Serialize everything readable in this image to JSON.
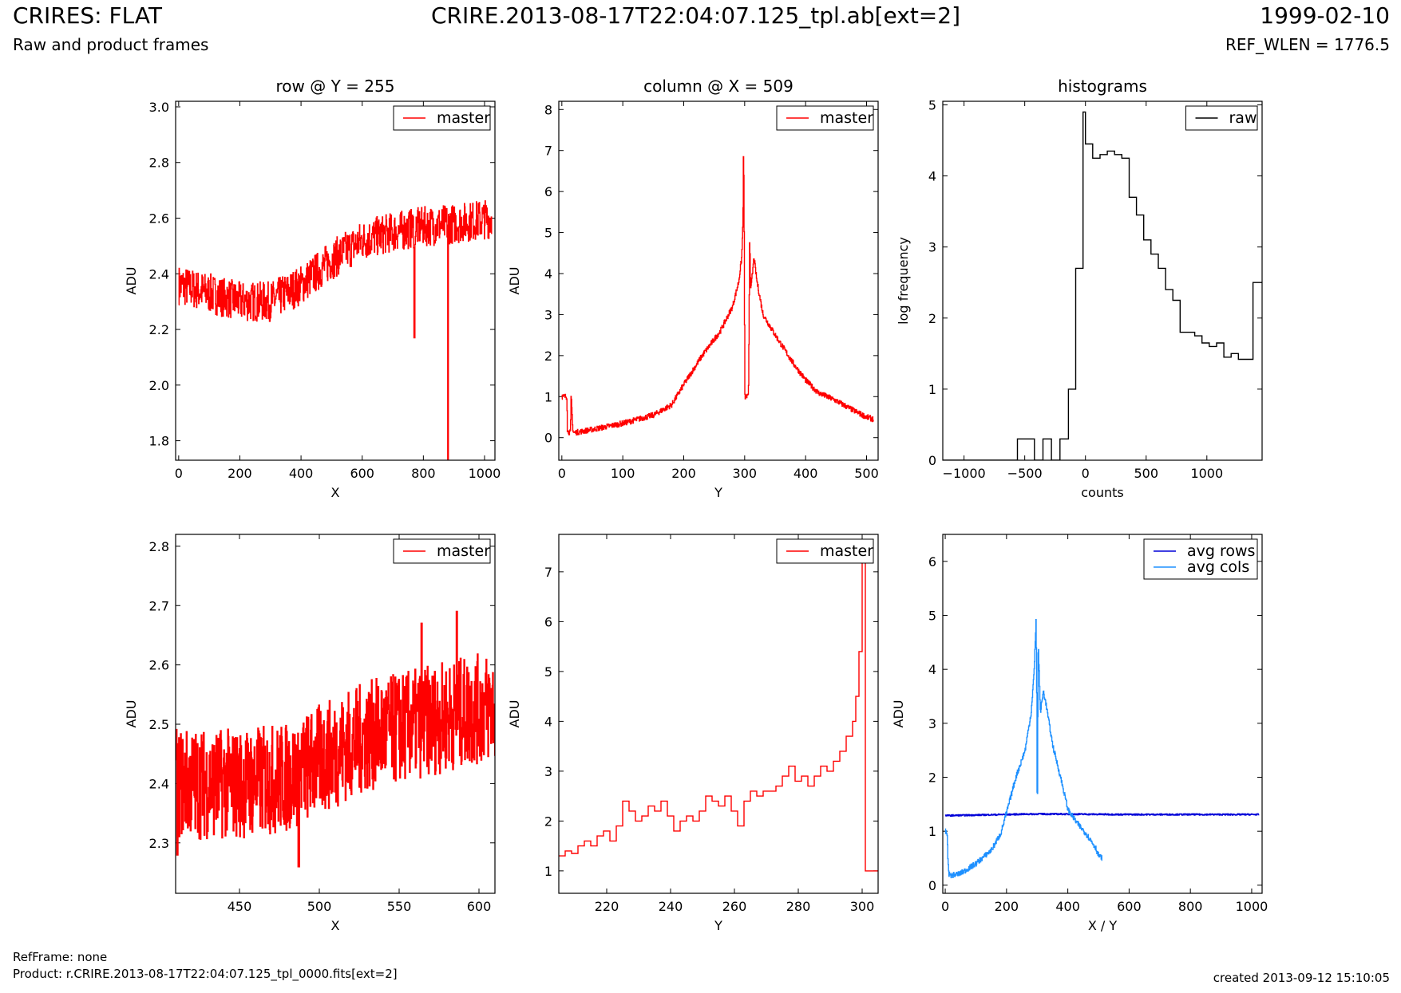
{
  "header": {
    "title": "CRIRES: FLAT",
    "subtitle": "Raw and product frames",
    "file": "CRIRE.2013-08-17T22:04:07.125_tpl.ab[ext=2]",
    "date": "1999-02-10",
    "ref_wlen": "REF_WLEN = 1776.5"
  },
  "footer": {
    "ref_frame": "RefFrame: none",
    "product": "Product: r.CRIRE.2013-08-17T22:04:07.125_tpl_0000.fits[ext=2]",
    "created": "created 2013-09-12 15:10:05"
  },
  "chart_data": [
    {
      "id": "row",
      "type": "line",
      "title": "row @ Y = 255",
      "xlabel": "X",
      "ylabel": "ADU",
      "xlim": [
        -10,
        1034
      ],
      "ylim": [
        1.73,
        3.02
      ],
      "xticks": [
        0,
        200,
        400,
        600,
        800,
        1000
      ],
      "yticks": [
        1.8,
        2.0,
        2.2,
        2.4,
        2.6,
        2.8,
        3.0
      ],
      "yticklabels": [
        "1.8",
        "2.0",
        "2.2",
        "2.4",
        "2.6",
        "2.8",
        "3.0"
      ],
      "legend": "top-right",
      "series": [
        {
          "name": "master",
          "color": "#ff0000",
          "style": "noisy",
          "x": [
            0,
            100,
            200,
            300,
            400,
            500,
            600,
            700,
            800,
            900,
            1023
          ],
          "y": [
            2.36,
            2.33,
            2.3,
            2.3,
            2.36,
            2.45,
            2.52,
            2.55,
            2.57,
            2.58,
            2.6
          ],
          "noise": 0.13,
          "spikes": [
            [
              770,
              2.17
            ],
            [
              880,
              1.73
            ]
          ]
        }
      ]
    },
    {
      "id": "column",
      "type": "line",
      "title": "column @ X = 509",
      "xlabel": "Y",
      "ylabel": "ADU",
      "xlim": [
        -5,
        519
      ],
      "ylim": [
        -0.55,
        8.2
      ],
      "xticks": [
        0,
        100,
        200,
        300,
        400,
        500
      ],
      "yticks": [
        0,
        1,
        2,
        3,
        4,
        5,
        6,
        7,
        8
      ],
      "legend": "top-right",
      "series": [
        {
          "name": "master",
          "color": "#ff0000",
          "style": "noisy",
          "x": [
            0,
            8,
            9,
            14,
            15,
            18,
            20,
            50,
            100,
            150,
            180,
            200,
            230,
            260,
            280,
            290,
            295,
            297,
            298,
            299,
            300,
            301,
            302,
            303,
            304,
            305,
            306,
            307,
            308,
            309,
            310,
            315,
            320,
            330,
            350,
            380,
            400,
            420,
            450,
            480,
            500,
            511
          ],
          "y": [
            1.0,
            1.0,
            0.15,
            0.12,
            1.05,
            0.15,
            0.12,
            0.2,
            0.35,
            0.55,
            0.8,
            1.3,
            2.0,
            2.6,
            3.2,
            3.8,
            4.4,
            5.3,
            7.2,
            5.0,
            1.0,
            1.0,
            1.0,
            1.0,
            1.0,
            1.0,
            1.0,
            2.8,
            5.0,
            4.0,
            3.6,
            4.4,
            3.8,
            3.0,
            2.5,
            1.8,
            1.4,
            1.1,
            0.9,
            0.65,
            0.5,
            0.45
          ],
          "noise": 0.12
        }
      ]
    },
    {
      "id": "hist",
      "type": "histogram",
      "title": "histograms",
      "xlabel": "counts",
      "ylabel": "log frequency",
      "xlim": [
        -1175,
        1455
      ],
      "ylim": [
        0,
        5.05
      ],
      "xticks": [
        -1000,
        -500,
        0,
        500,
        1000
      ],
      "xticklabels": [
        "−1000",
        "−500",
        "0",
        "500",
        "1000"
      ],
      "yticks": [
        0,
        1,
        2,
        3,
        4,
        5
      ],
      "legend": "top-right",
      "series": [
        {
          "name": "raw",
          "color": "#000000",
          "edges": [
            -1175,
            -560,
            -420,
            -350,
            -280,
            -210,
            -140,
            -80,
            -20,
            0,
            60,
            120,
            180,
            240,
            300,
            360,
            420,
            480,
            540,
            600,
            660,
            720,
            780,
            840,
            900,
            960,
            1020,
            1080,
            1140,
            1200,
            1260,
            1320,
            1380,
            1455
          ],
          "counts": [
            0,
            0.3,
            0,
            0.3,
            0,
            0.3,
            1.0,
            2.7,
            4.9,
            4.45,
            4.25,
            4.3,
            4.35,
            4.3,
            4.25,
            3.7,
            3.45,
            3.1,
            2.9,
            2.7,
            2.4,
            2.25,
            1.8,
            1.8,
            1.75,
            1.65,
            1.6,
            1.65,
            1.45,
            1.5,
            1.42,
            1.42,
            2.5
          ]
        }
      ]
    },
    {
      "id": "row-zoom",
      "type": "line",
      "title": "",
      "xlabel": "X",
      "ylabel": "ADU",
      "xlim": [
        410,
        610
      ],
      "ylim": [
        2.215,
        2.82
      ],
      "xticks": [
        450,
        500,
        550,
        600
      ],
      "yticks": [
        2.3,
        2.4,
        2.5,
        2.6,
        2.7,
        2.8
      ],
      "legend": "top-right",
      "series": [
        {
          "name": "master",
          "color": "#ff0000",
          "style": "noisy",
          "x": [
            410,
            450,
            480,
            500,
            530,
            560,
            590,
            610
          ],
          "y": [
            2.4,
            2.4,
            2.41,
            2.44,
            2.48,
            2.5,
            2.52,
            2.53
          ],
          "noise": 0.17,
          "spikes": [
            [
              411,
              2.28
            ],
            [
              487,
              2.26
            ],
            [
              564,
              2.67
            ],
            [
              586,
              2.69
            ]
          ]
        }
      ]
    },
    {
      "id": "column-zoom",
      "type": "line",
      "title": "",
      "xlabel": "Y",
      "ylabel": "ADU",
      "xlim": [
        205,
        305
      ],
      "ylim": [
        0.55,
        7.75
      ],
      "xticks": [
        220,
        240,
        260,
        280,
        300
      ],
      "yticks": [
        1,
        2,
        3,
        4,
        5,
        6,
        7
      ],
      "legend": "top-right",
      "series": [
        {
          "name": "master",
          "color": "#ff0000",
          "style": "steps",
          "x": [
            205,
            207,
            209,
            211,
            213,
            215,
            217,
            219,
            221,
            223,
            225,
            227,
            229,
            231,
            233,
            235,
            237,
            239,
            241,
            243,
            245,
            247,
            249,
            251,
            253,
            255,
            257,
            259,
            261,
            263,
            265,
            267,
            269,
            271,
            273,
            275,
            277,
            279,
            281,
            283,
            285,
            287,
            289,
            291,
            293,
            295,
            297,
            298,
            299,
            300,
            301,
            303,
            305
          ],
          "y": [
            1.3,
            1.4,
            1.35,
            1.5,
            1.6,
            1.5,
            1.7,
            1.8,
            1.6,
            1.9,
            2.4,
            2.2,
            2.0,
            2.1,
            2.3,
            2.2,
            2.4,
            2.1,
            1.8,
            2.0,
            2.1,
            2.0,
            2.2,
            2.5,
            2.4,
            2.3,
            2.5,
            2.2,
            1.9,
            2.4,
            2.6,
            2.5,
            2.6,
            2.6,
            2.7,
            2.9,
            3.1,
            2.8,
            2.9,
            2.7,
            2.9,
            3.1,
            3.0,
            3.2,
            3.4,
            3.7,
            4.0,
            4.5,
            5.4,
            7.4,
            1.0,
            1.0,
            1.0
          ]
        }
      ]
    },
    {
      "id": "avg",
      "type": "line",
      "title": "",
      "xlabel": "X / Y",
      "ylabel": "ADU",
      "xlim": [
        -8,
        1034
      ],
      "ylim": [
        -0.15,
        6.5
      ],
      "xticks": [
        0,
        200,
        400,
        600,
        800,
        1000
      ],
      "yticks": [
        0,
        1,
        2,
        3,
        4,
        5,
        6
      ],
      "legend": "top-right",
      "series": [
        {
          "name": "avg rows",
          "color": "#0000d8",
          "style": "noisy",
          "x": [
            0,
            300,
            600,
            900,
            1023
          ],
          "y": [
            1.29,
            1.32,
            1.31,
            1.31,
            1.31
          ],
          "noise": 0.025
        },
        {
          "name": "avg cols",
          "color": "#1e90ff",
          "style": "noisy",
          "x": [
            0,
            6,
            8,
            12,
            20,
            50,
            100,
            150,
            180,
            200,
            230,
            260,
            280,
            290,
            294,
            296,
            298,
            299,
            300,
            301,
            303,
            306,
            310,
            320,
            330,
            350,
            380,
            400,
            430,
            460,
            490,
            500,
            511
          ],
          "y": [
            1.0,
            0.95,
            0.5,
            0.2,
            0.18,
            0.22,
            0.4,
            0.65,
            0.95,
            1.35,
            2.0,
            2.5,
            3.2,
            4.0,
            4.6,
            5.0,
            3.7,
            2.0,
            1.0,
            2.5,
            4.5,
            4.0,
            3.2,
            3.6,
            3.3,
            2.6,
            1.9,
            1.4,
            1.15,
            0.95,
            0.7,
            0.55,
            0.5
          ],
          "noise": 0.09
        }
      ]
    }
  ]
}
